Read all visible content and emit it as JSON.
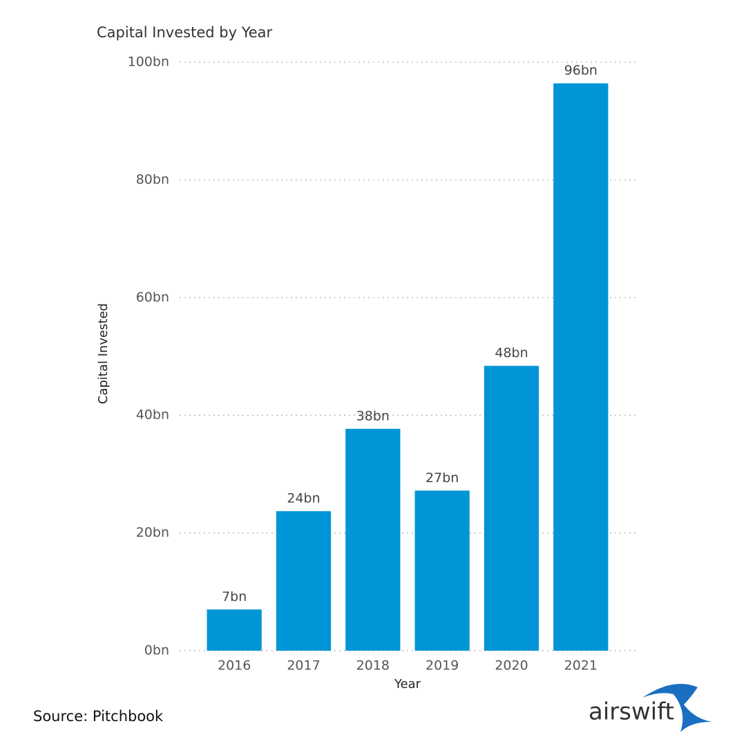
{
  "chart_data": {
    "type": "bar",
    "title": "Capital Invested by Year",
    "y_label": "Capital Invested",
    "x_label": "Year",
    "categories": [
      "2016",
      "2017",
      "2018",
      "2019",
      "2020",
      "2021"
    ],
    "values": [
      7,
      23.7,
      37.7,
      27.2,
      48.4,
      96.4
    ],
    "value_labels": [
      "7bn",
      "24bn",
      "38bn",
      "27bn",
      "48bn",
      "96bn"
    ],
    "color": "#0095d6",
    "ylim": [
      0,
      100
    ],
    "yticks": [
      {
        "value": 0,
        "label": "0bn"
      },
      {
        "value": 20,
        "label": "20bn"
      },
      {
        "value": 40,
        "label": "40bn"
      },
      {
        "value": 60,
        "label": "60bn"
      },
      {
        "value": 80,
        "label": "80bn"
      },
      {
        "value": 100,
        "label": "100bn"
      }
    ],
    "grid": true
  },
  "source": "Source: Pitchbook",
  "logo": "airswift"
}
